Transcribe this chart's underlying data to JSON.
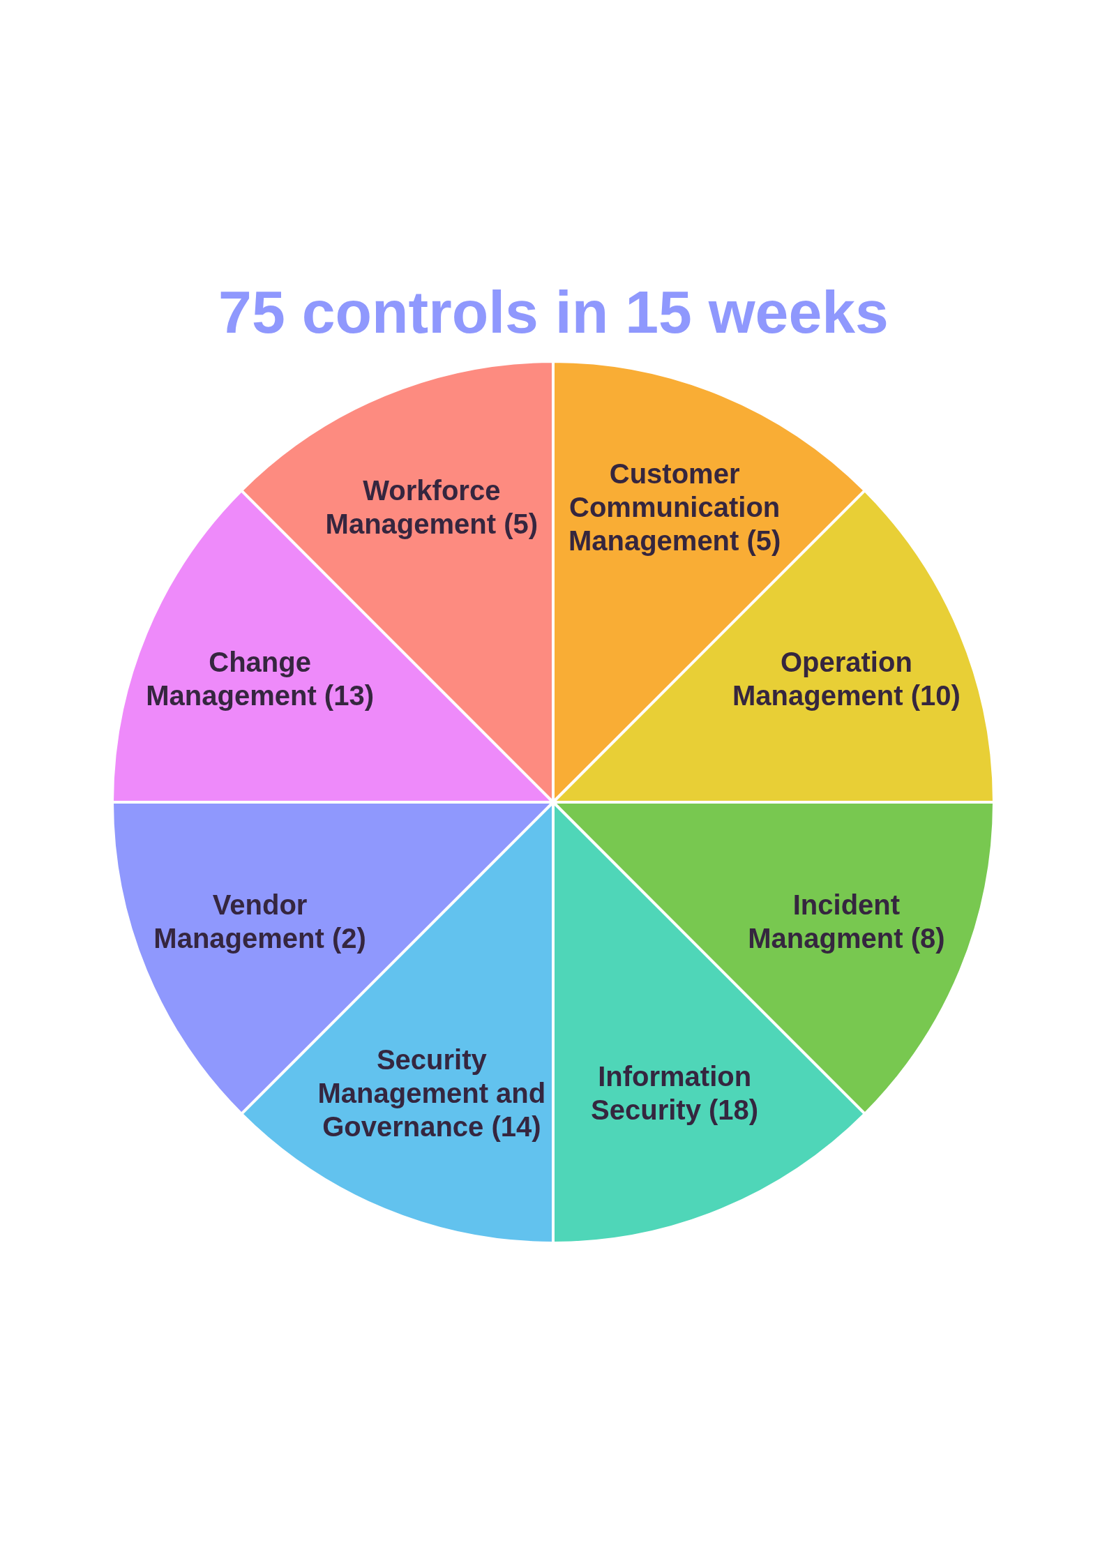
{
  "chart_data": {
    "type": "pie",
    "title": "75 controls in 15 weeks",
    "categories": [
      "Customer Communication Management (5)",
      "Operation Management (10)",
      "Incident Managment (8)",
      "Information Security (18)",
      "Security Management and Governance (14)",
      "Vendor Management (2)",
      "Change Management (13)",
      "Workforce Management (5)"
    ],
    "values": [
      12.5,
      12.5,
      12.5,
      12.5,
      12.5,
      12.5,
      12.5,
      12.5
    ],
    "colors": [
      "#f9ad35",
      "#e8cf36",
      "#78c850",
      "#4fd6b8",
      "#62c2ee",
      "#8f98fd",
      "#ee8afa",
      "#fd8b80"
    ]
  }
}
